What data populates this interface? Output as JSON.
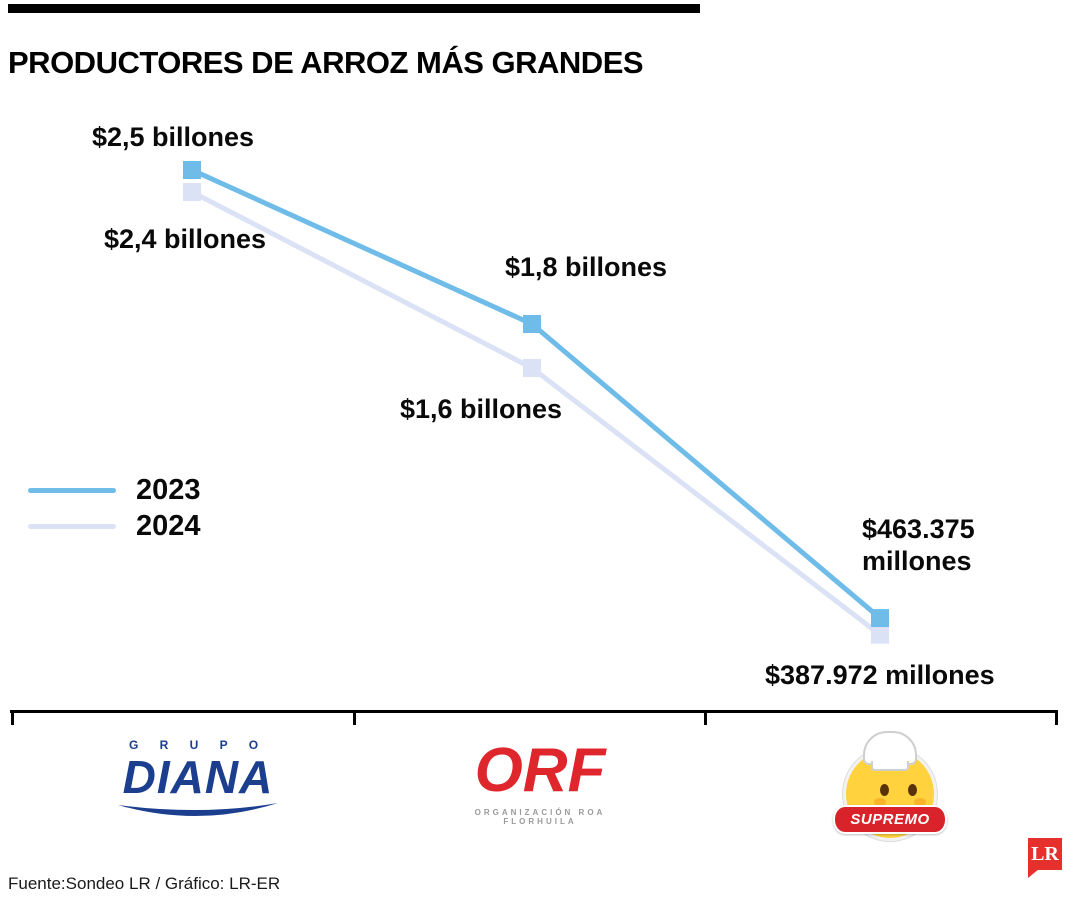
{
  "header": {
    "title": "PRODUCTORES DE ARROZ MÁS GRANDES"
  },
  "chart_data": {
    "type": "line",
    "title": "Productores de arroz más grandes",
    "categories": [
      "Grupo Diana",
      "ORF Organización Roa Florhuila",
      "Supremo"
    ],
    "unit": "millones de pesos",
    "series": [
      {
        "name": "2023",
        "color": "#6fbce9",
        "values": [
          2500000,
          1800000,
          463375
        ],
        "labels": [
          "$2,5 billones",
          "$1,8 billones",
          "$463.375 millones"
        ]
      },
      {
        "name": "2024",
        "color": "#dce2f5",
        "values": [
          2400000,
          1600000,
          387972
        ],
        "labels": [
          "$2,4 billones",
          "$1,6 billones",
          "$387.972 millones"
        ]
      }
    ],
    "ylim": [
      300000,
      2600000
    ],
    "grid": false,
    "legend_position": "middle-left"
  },
  "legend": {
    "items": [
      {
        "label": "2023",
        "color": "#6fbce9"
      },
      {
        "label": "2024",
        "color": "#dce2f5"
      }
    ]
  },
  "logos": {
    "diana": {
      "top": "G R U P O",
      "name": "DIANA"
    },
    "orf": {
      "name": "ORF",
      "caption": "ORGANIZACIÓN ROA FLORHUILA"
    },
    "supremo": {
      "name": "SUPREMO"
    }
  },
  "footer": {
    "source": "Fuente:Sondeo LR / Gráfico: LR-ER"
  },
  "branding": {
    "lr": "LR"
  }
}
